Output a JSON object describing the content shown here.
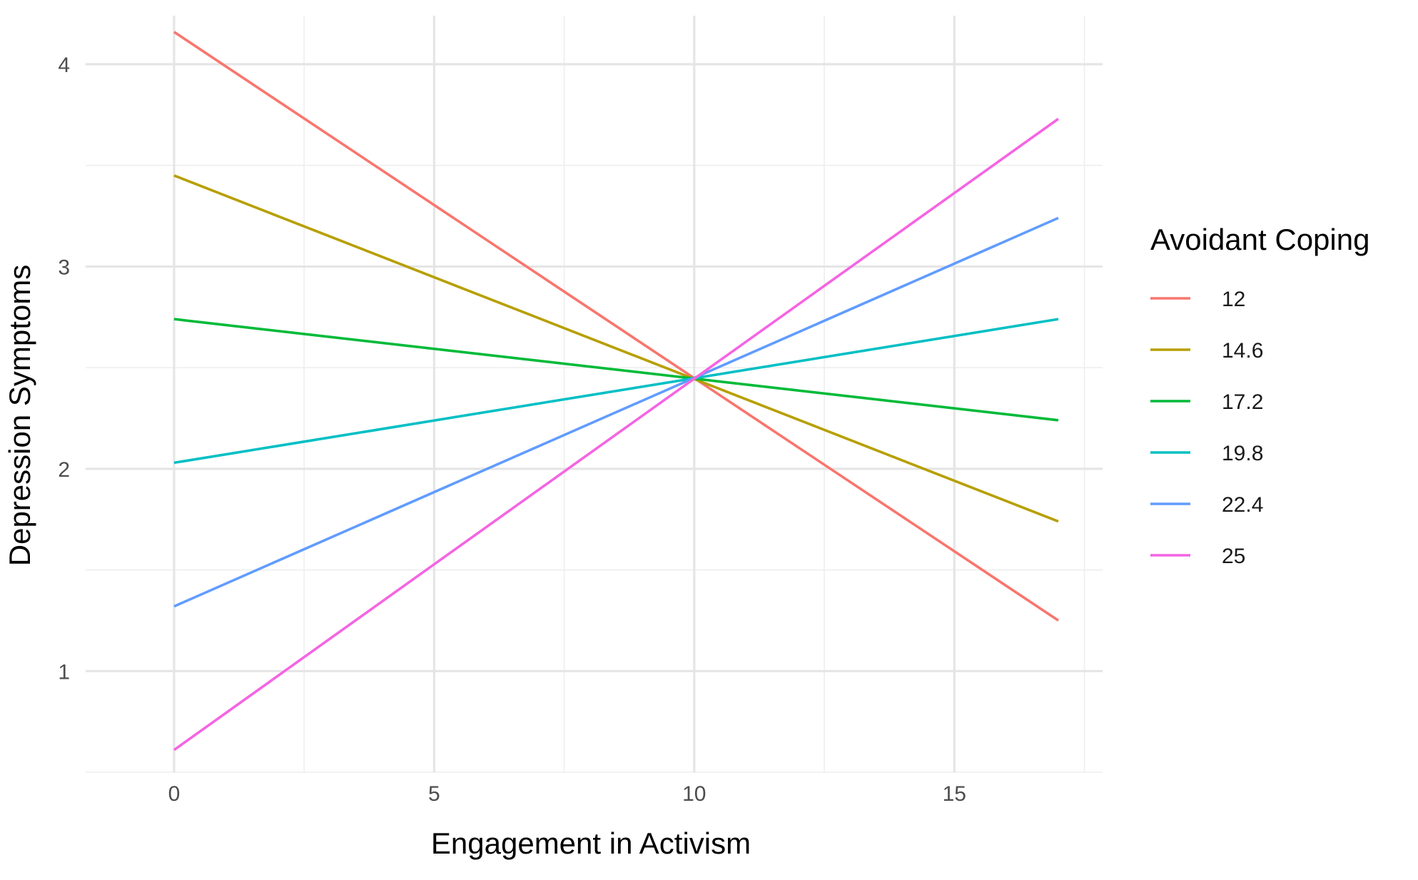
{
  "chart_data": {
    "type": "line",
    "title": "",
    "xlabel": "Engagement in Activism",
    "ylabel": "Depression Symptoms",
    "xlim": [
      -1.7,
      17.85
    ],
    "ylim": [
      0.5,
      4.24
    ],
    "x_major_ticks": [
      0,
      5,
      10,
      15
    ],
    "x_minor_ticks": [
      2.5,
      7.5,
      12.5,
      17.5
    ],
    "y_major_ticks": [
      1,
      2,
      3,
      4
    ],
    "y_minor_ticks": [
      0.5,
      1.5,
      2.5,
      3.5
    ],
    "x_tick_labels": [
      "0",
      "5",
      "10",
      "15"
    ],
    "y_tick_labels": [
      "1",
      "2",
      "3",
      "4"
    ],
    "grid": true,
    "legend": {
      "title": "Avoidant Coping",
      "placement": "right"
    },
    "series": [
      {
        "name": "12",
        "color": "#F8766D",
        "x": [
          0,
          17
        ],
        "y": [
          4.16,
          1.25
        ]
      },
      {
        "name": "14.6",
        "color": "#B79F00",
        "x": [
          0,
          17
        ],
        "y": [
          3.45,
          1.74
        ]
      },
      {
        "name": "17.2",
        "color": "#00BA38",
        "x": [
          0,
          17
        ],
        "y": [
          2.74,
          2.24
        ]
      },
      {
        "name": "19.8",
        "color": "#00BFC4",
        "x": [
          0,
          17
        ],
        "y": [
          2.03,
          2.74
        ]
      },
      {
        "name": "22.4",
        "color": "#619CFF",
        "x": [
          0,
          17
        ],
        "y": [
          1.32,
          3.24
        ]
      },
      {
        "name": "25",
        "color": "#F564E3",
        "x": [
          0,
          17
        ],
        "y": [
          0.61,
          3.73
        ]
      }
    ]
  }
}
